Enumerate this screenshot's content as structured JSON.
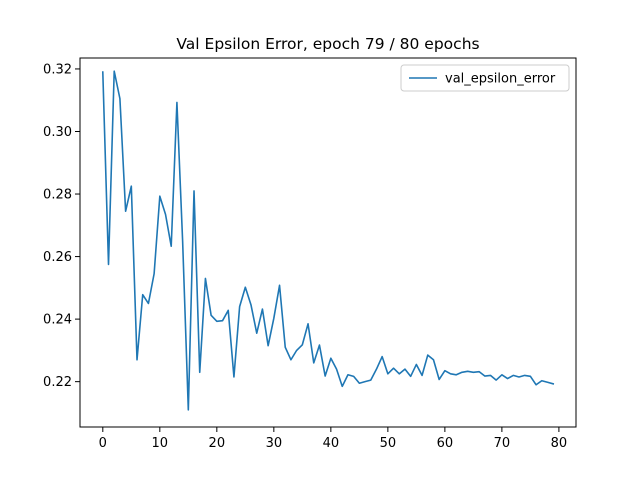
{
  "chart_data": {
    "type": "line",
    "title": "Val Epsilon Error, epoch 79 / 80 epochs",
    "xlabel": "",
    "ylabel": "",
    "xlim": [
      -4,
      83
    ],
    "ylim": [
      0.2055,
      0.3235
    ],
    "xticks": [
      0,
      10,
      20,
      30,
      40,
      50,
      60,
      70,
      80
    ],
    "yticks": [
      0.22,
      0.24,
      0.26,
      0.28,
      0.3,
      0.32
    ],
    "ytick_labels": [
      "0.22",
      "0.24",
      "0.26",
      "0.28",
      "0.30",
      "0.32"
    ],
    "grid": false,
    "legend": "top-right",
    "series": [
      {
        "name": "val_epsilon_error",
        "color": "#1f77b4",
        "x": [
          0,
          1,
          2,
          3,
          4,
          5,
          6,
          7,
          8,
          9,
          10,
          11,
          12,
          13,
          14,
          15,
          16,
          17,
          18,
          19,
          20,
          21,
          22,
          23,
          24,
          25,
          26,
          27,
          28,
          29,
          30,
          31,
          32,
          33,
          34,
          35,
          36,
          37,
          38,
          39,
          40,
          41,
          42,
          43,
          44,
          45,
          46,
          47,
          48,
          49,
          50,
          51,
          52,
          53,
          54,
          55,
          56,
          57,
          58,
          59,
          60,
          61,
          62,
          63,
          64,
          65,
          66,
          67,
          68,
          69,
          70,
          71,
          72,
          73,
          74,
          75,
          76,
          77,
          78,
          79
        ],
        "values": [
          0.319,
          0.2575,
          0.3193,
          0.3105,
          0.2745,
          0.2825,
          0.227,
          0.2478,
          0.245,
          0.2545,
          0.2793,
          0.2735,
          0.2633,
          0.3093,
          0.265,
          0.211,
          0.281,
          0.223,
          0.253,
          0.2412,
          0.2393,
          0.2395,
          0.2428,
          0.2215,
          0.244,
          0.2502,
          0.2445,
          0.2355,
          0.2432,
          0.2315,
          0.2403,
          0.2508,
          0.231,
          0.227,
          0.23,
          0.2318,
          0.2385,
          0.226,
          0.2317,
          0.2218,
          0.2275,
          0.224,
          0.2185,
          0.2222,
          0.2217,
          0.2195,
          0.22,
          0.2205,
          0.224,
          0.228,
          0.2225,
          0.2243,
          0.2225,
          0.224,
          0.2217,
          0.2255,
          0.222,
          0.2285,
          0.227,
          0.2207,
          0.2235,
          0.2225,
          0.2222,
          0.223,
          0.2233,
          0.223,
          0.2232,
          0.2218,
          0.222,
          0.2205,
          0.2222,
          0.221,
          0.222,
          0.2215,
          0.222,
          0.2217,
          0.219,
          0.2203,
          0.2198,
          0.2193
        ]
      }
    ]
  }
}
